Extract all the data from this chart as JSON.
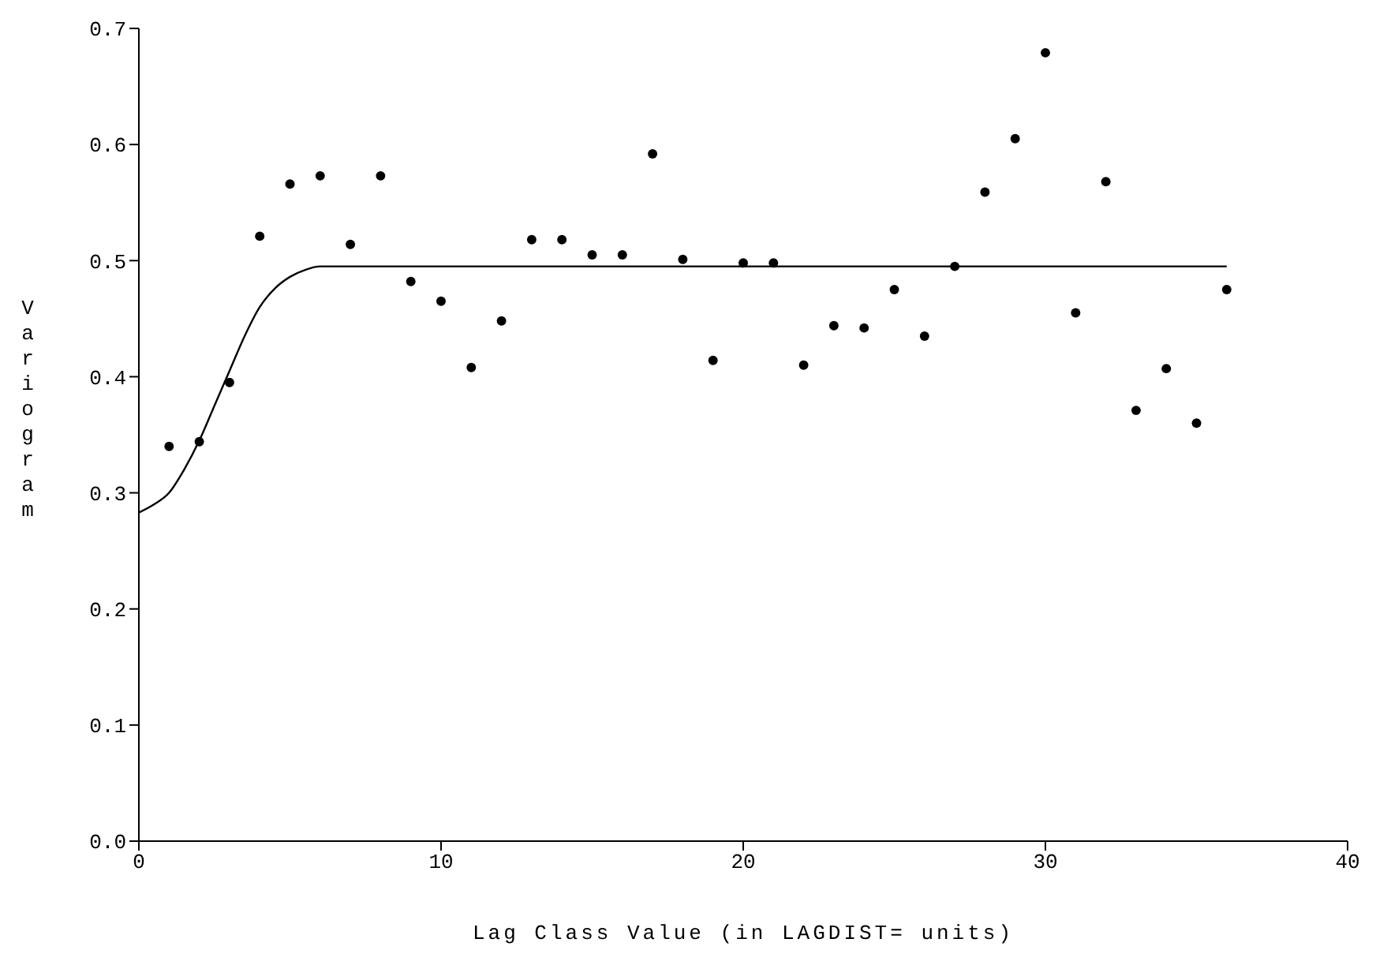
{
  "chart_data": {
    "type": "scatter",
    "xlabel": "Lag Class Value (in LAGDIST= units)",
    "ylabel": "Variogram",
    "xlim": [
      0,
      40
    ],
    "xticks": [
      0,
      10,
      20,
      30,
      40
    ],
    "ylim": [
      0,
      0.7
    ],
    "yticks": [
      {
        "value": 0,
        "label": "0.0"
      },
      {
        "value": 0.1,
        "label": "0.1"
      },
      {
        "value": 0.2,
        "label": "0.2"
      },
      {
        "value": 0.3,
        "label": "0.3"
      },
      {
        "value": 0.4,
        "label": "0.4"
      },
      {
        "value": 0.5,
        "label": "0.5"
      },
      {
        "value": 0.6,
        "label": "0.6"
      },
      {
        "value": 0.7,
        "label": "0.7"
      }
    ],
    "series": [
      {
        "color": "#000000",
        "marker": "circle",
        "x": [
          1,
          2,
          3,
          4,
          5,
          6,
          7,
          8,
          9,
          10,
          11,
          12,
          13,
          14,
          15,
          16,
          17,
          18,
          19,
          20,
          21,
          22,
          23,
          24,
          25,
          26,
          27,
          28,
          29,
          30,
          31,
          32,
          33,
          34,
          35,
          36
        ],
        "values": [
          0.34,
          0.344,
          0.395,
          0.521,
          0.566,
          0.573,
          0.514,
          0.573,
          0.482,
          0.465,
          0.408,
          0.448,
          0.518,
          0.518,
          0.505,
          0.505,
          0.592,
          0.501,
          0.414,
          0.498,
          0.498,
          0.41,
          0.444,
          0.442,
          0.475,
          0.435,
          0.495,
          0.559,
          0.605,
          0.679,
          0.455,
          0.568,
          0.371,
          0.407,
          0.36,
          0.475
        ]
      },
      {
        "type": "line",
        "color": "#000000",
        "marker": "none",
        "x": [
          0,
          0.5,
          1,
          1.5,
          2,
          2.5,
          3,
          3.5,
          4,
          4.5,
          5,
          5.5,
          6,
          36
        ],
        "values": [
          0.283,
          0.29,
          0.3,
          0.32,
          0.345,
          0.375,
          0.405,
          0.435,
          0.46,
          0.476,
          0.486,
          0.492,
          0.495,
          0.495
        ]
      }
    ]
  }
}
